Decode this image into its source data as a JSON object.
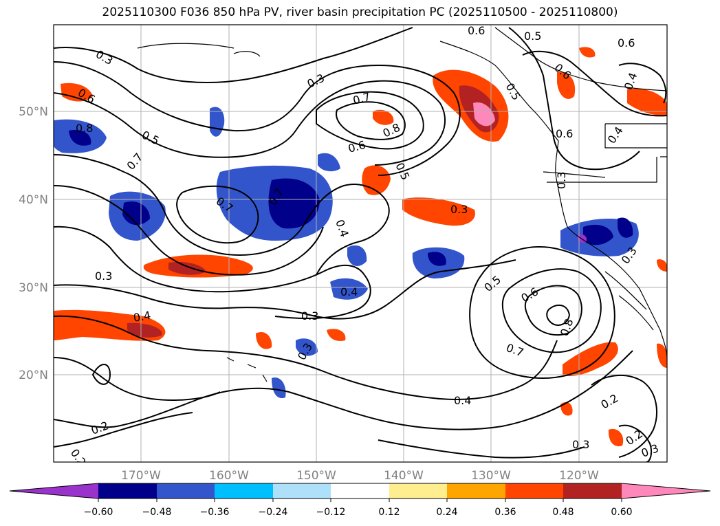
{
  "title": "2025110300 F036 850 hPa PV, river basin precipitation PC (2025110500 - 2025110800)",
  "map": {
    "lat_labels": [
      "50°N",
      "40°N",
      "30°N",
      "20°N"
    ],
    "lon_labels": [
      "170°W",
      "160°W",
      "150°W",
      "140°W",
      "130°W",
      "120°W"
    ],
    "contour_labels": [
      "0.6",
      "0.5",
      "0.6",
      "0.3",
      "0.3",
      "0.6",
      "0.5",
      "0.6",
      "0.4",
      "0.7",
      "0.6",
      "0.8",
      "0.5",
      "0.7",
      "0.8",
      "0.6",
      "0.5",
      "0.4",
      "0.3",
      "0.7",
      "0.7",
      "0.4",
      "0.3",
      "0.3",
      "0.3",
      "0.4",
      "0.3",
      "0.4",
      "0.5",
      "0.6",
      "0.8",
      "0.7",
      "0.3",
      "0.2",
      "0.4",
      "0.3",
      "0.2",
      "0.2",
      "0.3",
      "0.2"
    ],
    "colors": {
      "neg_060": "#9933cc",
      "neg_048": "#00008b",
      "neg_036": "#3355cc",
      "neg_024": "#00bfff",
      "neg_012": "#b0e0f8",
      "pos_012": "#fff08a",
      "pos_024": "#ffa500",
      "pos_036": "#ff4500",
      "pos_048": "#b22222",
      "pos_060": "#ff88bb"
    }
  },
  "colorbar": {
    "ticks": [
      "−0.60",
      "−0.48",
      "−0.36",
      "−0.24",
      "−0.12",
      "0.12",
      "0.24",
      "0.36",
      "0.48",
      "0.60"
    ],
    "colors": [
      "#9933cc",
      "#00008b",
      "#3355cc",
      "#00bfff",
      "#aee0fa",
      "#ffffff",
      "#ffee90",
      "#ffa500",
      "#ff4500",
      "#b22222",
      "#ff88bb"
    ]
  }
}
